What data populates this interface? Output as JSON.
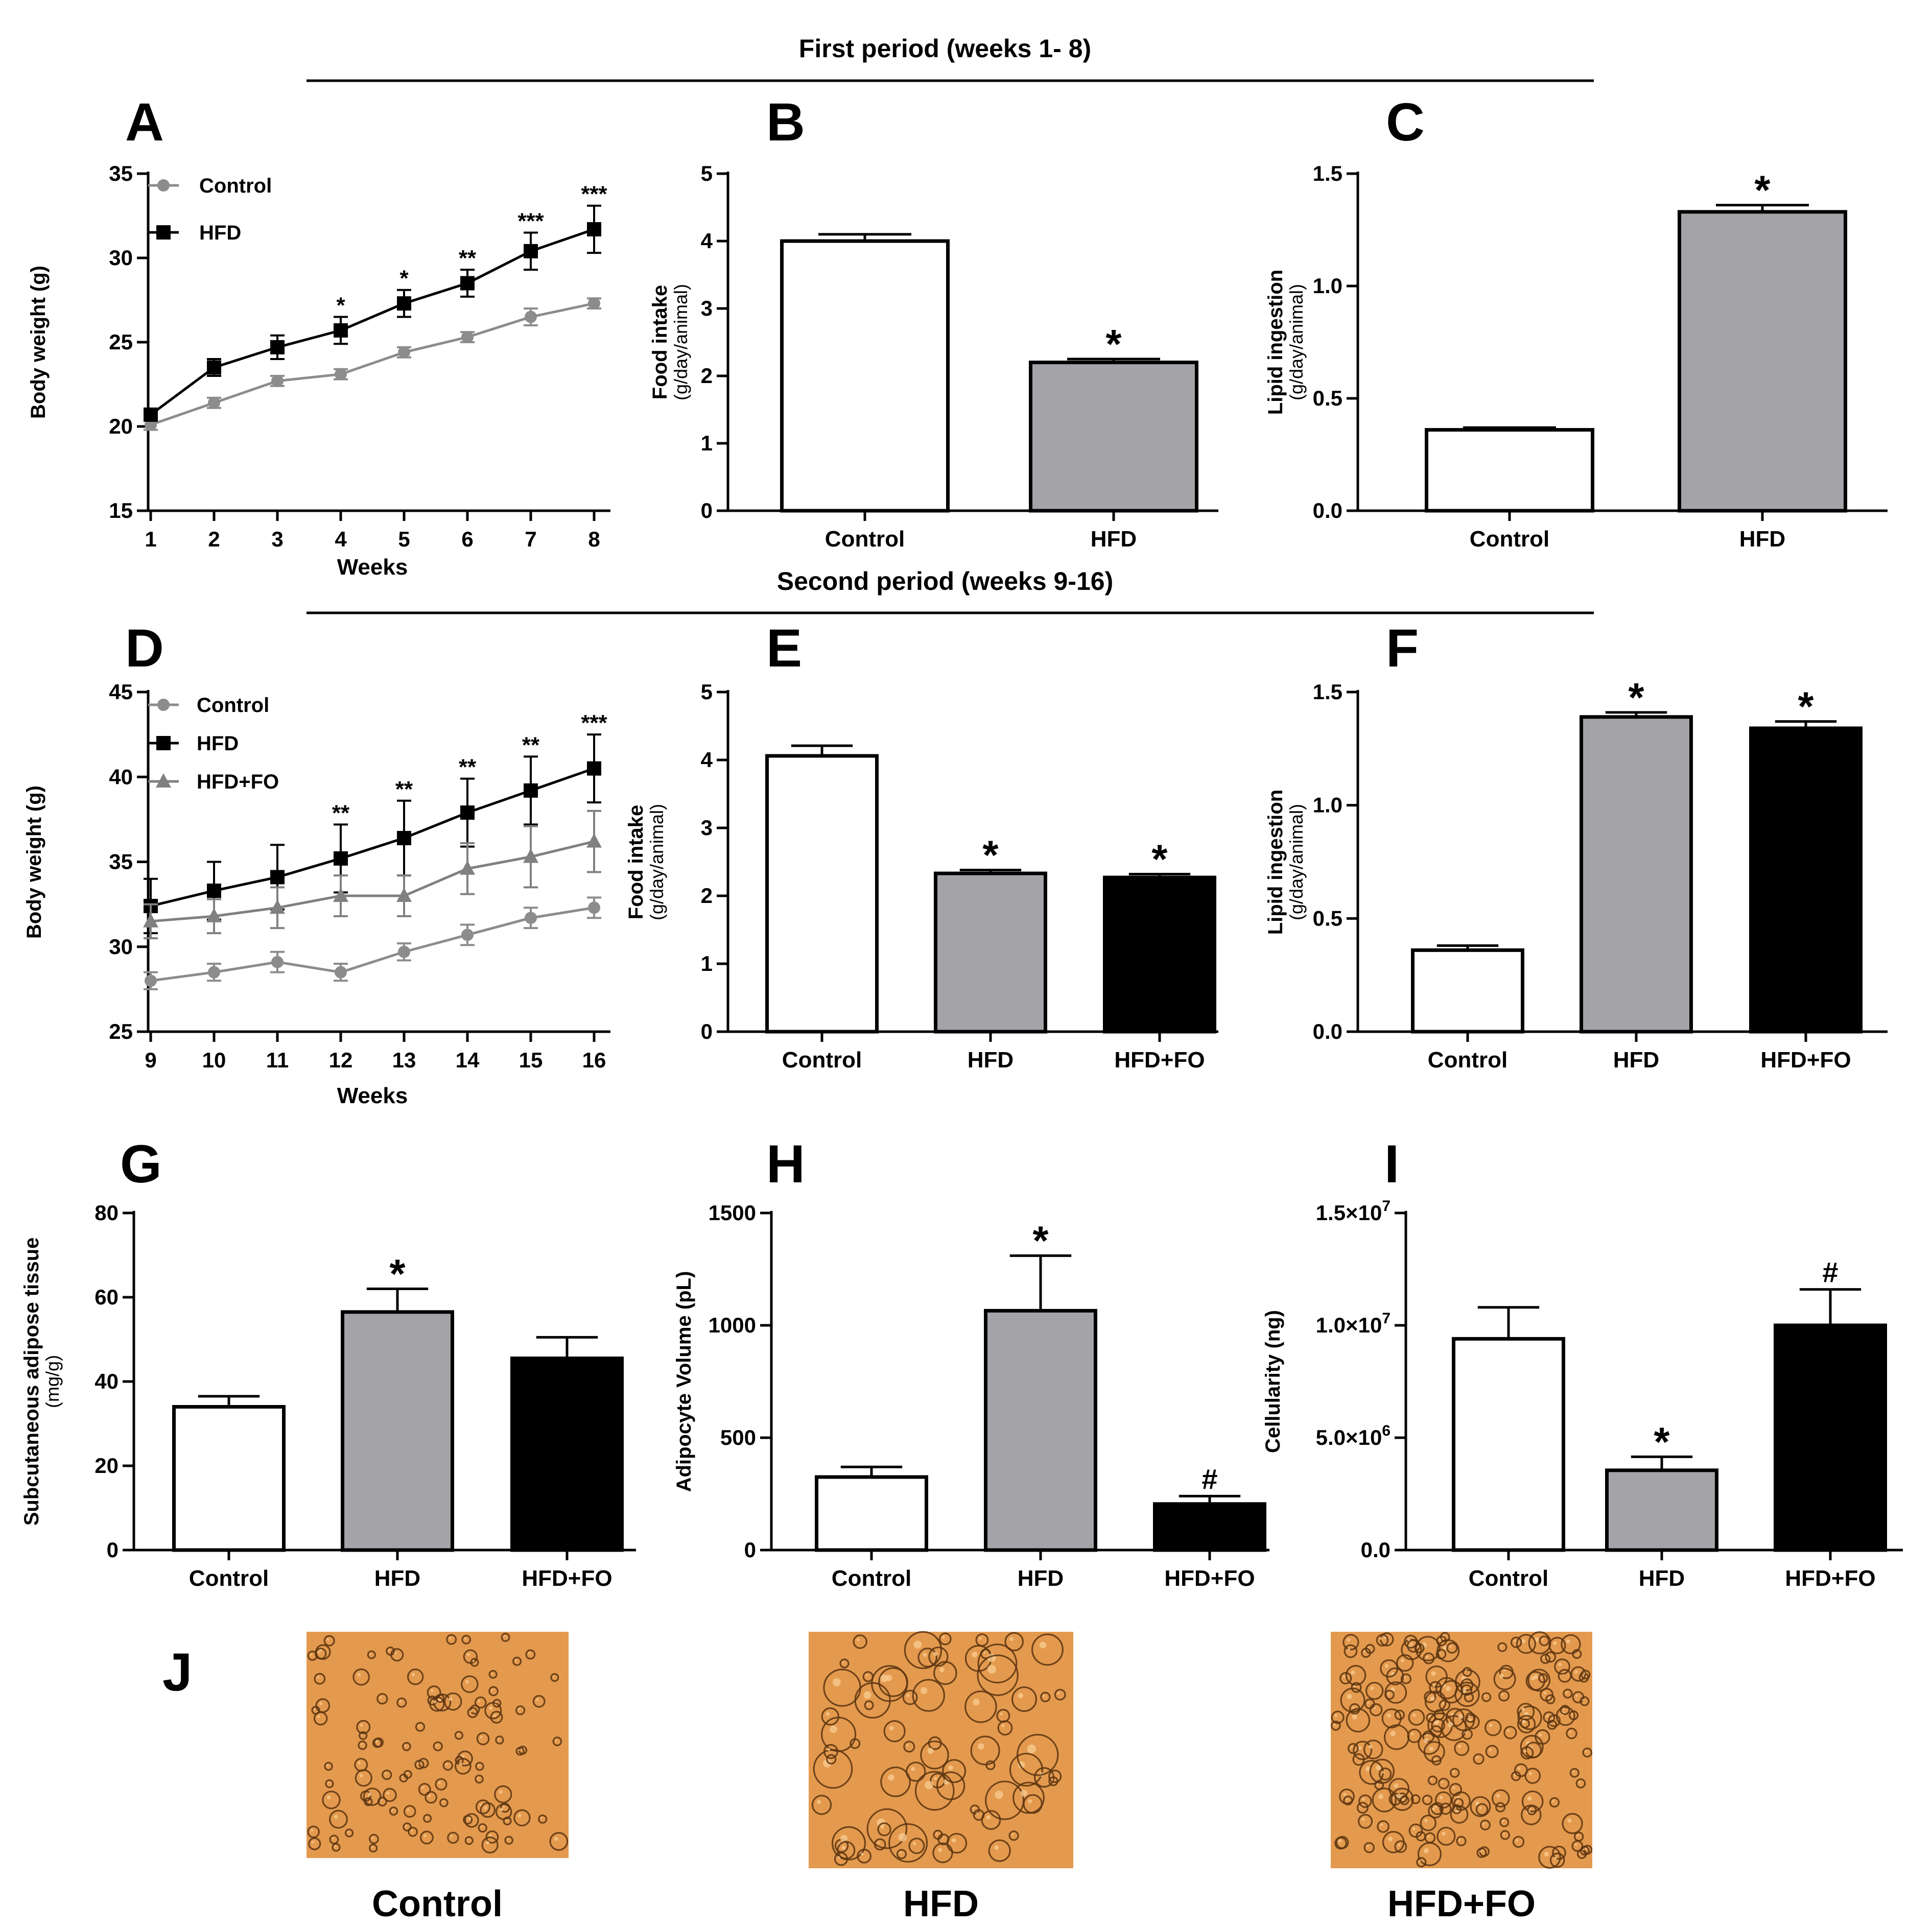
{
  "figure": {
    "period1_title": "First period (weeks 1- 8)",
    "period2_title": "Second period (weeks 9-16)",
    "panel_j_label": "J",
    "micrographs": [
      {
        "caption": "Control",
        "bg": "#e49a4e",
        "density": "sparse"
      },
      {
        "caption": "HFD",
        "bg": "#e49a4e",
        "density": "large"
      },
      {
        "caption": "HFD+FO",
        "bg": "#e49a4e",
        "density": "dense"
      }
    ]
  },
  "colors": {
    "control_line": "#8c8c8c",
    "hfd_line": "#000000",
    "hfdfo_line": "#808080",
    "control_bar": "#ffffff",
    "hfd_bar": "#a3a3a8",
    "hfdfo_bar": "#000000",
    "micro_bubble": "#5a3410"
  },
  "chart_data": [
    {
      "id": "A",
      "label": "A",
      "type": "line",
      "ylabel": "Body weight (g)",
      "ylabel2": "",
      "xlabel": "Weeks",
      "ylim": [
        15,
        35
      ],
      "yticks": [
        "15",
        "20",
        "25",
        "30",
        "35"
      ],
      "ytick_values": [
        15,
        20,
        25,
        30,
        35
      ],
      "x": [
        1,
        2,
        3,
        4,
        5,
        6,
        7,
        8
      ],
      "series": [
        {
          "name": "Control",
          "marker": "circle",
          "color": "#8c8c8c",
          "values": [
            20.1,
            21.4,
            22.7,
            23.1,
            24.4,
            25.3,
            26.5,
            27.3
          ],
          "errors": [
            0.3,
            0.3,
            0.3,
            0.3,
            0.3,
            0.3,
            0.5,
            0.3
          ]
        },
        {
          "name": "HFD",
          "marker": "square",
          "color": "#000000",
          "values": [
            20.7,
            23.5,
            24.7,
            25.7,
            27.3,
            28.5,
            30.4,
            31.7
          ],
          "errors": [
            0.3,
            0.5,
            0.7,
            0.8,
            0.8,
            0.8,
            1.1,
            1.4
          ]
        }
      ],
      "annotations": [
        "",
        "",
        "",
        "*",
        "*",
        "**",
        "***",
        "***"
      ]
    },
    {
      "id": "B",
      "label": "B",
      "type": "bar",
      "ylabel": "Food intake",
      "ylabel2": "(g/day/animal)",
      "ylim": [
        0,
        5
      ],
      "yticks": [
        "0",
        "1",
        "2",
        "3",
        "4",
        "5"
      ],
      "ytick_values": [
        0,
        1,
        2,
        3,
        4,
        5
      ],
      "categories": [
        "Control",
        "HFD"
      ],
      "values": [
        4.0,
        2.2
      ],
      "errors": [
        0.1,
        0.05
      ],
      "annotations": [
        "",
        "*"
      ],
      "bar_colors": [
        "#ffffff",
        "#a3a3a8"
      ]
    },
    {
      "id": "C",
      "label": "C",
      "type": "bar",
      "ylabel": "Lipid ingestion",
      "ylabel2": "(g/day/animal)",
      "ylim": [
        0,
        1.5
      ],
      "yticks": [
        "0.0",
        "0.5",
        "1.0",
        "1.5"
      ],
      "ytick_values": [
        0,
        0.5,
        1.0,
        1.5
      ],
      "categories": [
        "Control",
        "HFD"
      ],
      "values": [
        0.36,
        1.33
      ],
      "errors": [
        0.01,
        0.03
      ],
      "annotations": [
        "",
        "*"
      ],
      "bar_colors": [
        "#ffffff",
        "#a3a3a8"
      ]
    },
    {
      "id": "D",
      "label": "D",
      "type": "line",
      "ylabel": "Body weight (g)",
      "ylabel2": "",
      "xlabel": "Weeks",
      "ylim": [
        25,
        45
      ],
      "yticks": [
        "25",
        "30",
        "35",
        "40",
        "45"
      ],
      "ytick_values": [
        25,
        30,
        35,
        40,
        45
      ],
      "x": [
        9,
        10,
        11,
        12,
        13,
        14,
        15,
        16
      ],
      "series": [
        {
          "name": "Control",
          "marker": "circle",
          "color": "#8c8c8c",
          "values": [
            28.0,
            28.5,
            29.1,
            28.5,
            29.7,
            30.7,
            31.7,
            32.3
          ],
          "errors": [
            0.5,
            0.5,
            0.6,
            0.5,
            0.5,
            0.6,
            0.6,
            0.6
          ]
        },
        {
          "name": "HFD",
          "marker": "square",
          "color": "#000000",
          "values": [
            32.4,
            33.3,
            34.1,
            35.2,
            36.4,
            37.9,
            39.2,
            40.5
          ],
          "errors": [
            1.6,
            1.7,
            1.9,
            2.0,
            2.2,
            2.0,
            2.0,
            2.0
          ]
        },
        {
          "name": "HFD+FO",
          "marker": "triangle",
          "color": "#808080",
          "values": [
            31.5,
            31.8,
            32.3,
            33.0,
            33.0,
            34.6,
            35.3,
            36.2
          ],
          "errors": [
            1.0,
            1.0,
            1.2,
            1.2,
            1.2,
            1.5,
            1.8,
            1.8
          ]
        }
      ],
      "annotations": [
        "",
        "",
        "",
        "**",
        "**",
        "**",
        "**",
        "***"
      ]
    },
    {
      "id": "E",
      "label": "E",
      "type": "bar",
      "ylabel": "Food intake",
      "ylabel2": "(g/day/animal)",
      "ylim": [
        0,
        5
      ],
      "yticks": [
        "0",
        "1",
        "2",
        "3",
        "4",
        "5"
      ],
      "ytick_values": [
        0,
        1,
        2,
        3,
        4,
        5
      ],
      "categories": [
        "Control",
        "HFD",
        "HFD+FO"
      ],
      "values": [
        4.06,
        2.33,
        2.27
      ],
      "errors": [
        0.15,
        0.05,
        0.05
      ],
      "annotations": [
        "",
        "*",
        "*"
      ],
      "bar_colors": [
        "#ffffff",
        "#a3a3a8",
        "#000000"
      ]
    },
    {
      "id": "F",
      "label": "F",
      "type": "bar",
      "ylabel": "Lipid ingestion",
      "ylabel2": "(g/day/animal)",
      "ylim": [
        0,
        1.5
      ],
      "yticks": [
        "0.0",
        "0.5",
        "1.0",
        "1.5"
      ],
      "ytick_values": [
        0,
        0.5,
        1.0,
        1.5
      ],
      "categories": [
        "Control",
        "HFD",
        "HFD+FO"
      ],
      "values": [
        0.36,
        1.39,
        1.34
      ],
      "errors": [
        0.02,
        0.02,
        0.03
      ],
      "annotations": [
        "",
        "*",
        "*"
      ],
      "bar_colors": [
        "#ffffff",
        "#a3a3a8",
        "#000000"
      ]
    },
    {
      "id": "G",
      "label": "G",
      "type": "bar",
      "ylabel": "Subcutaneous adipose tissue",
      "ylabel2": "(mg/g)",
      "ylim": [
        0,
        80
      ],
      "yticks": [
        "0",
        "20",
        "40",
        "60",
        "80"
      ],
      "ytick_values": [
        0,
        20,
        40,
        60,
        80
      ],
      "categories": [
        "Control",
        "HFD",
        "HFD+FO"
      ],
      "values": [
        34,
        56.5,
        45.5
      ],
      "errors": [
        2.5,
        5.5,
        5
      ],
      "annotations": [
        "",
        "*",
        ""
      ],
      "bar_colors": [
        "#ffffff",
        "#a3a3a8",
        "#000000"
      ]
    },
    {
      "id": "H",
      "label": "H",
      "type": "bar",
      "ylabel": "Adipocyte Volume (pL)",
      "ylabel2": "",
      "ylim": [
        0,
        1500
      ],
      "yticks": [
        "0",
        "500",
        "1000",
        "1500"
      ],
      "ytick_values": [
        0,
        500,
        1000,
        1500
      ],
      "categories": [
        "Control",
        "HFD",
        "HFD+FO"
      ],
      "values": [
        325,
        1065,
        205
      ],
      "errors": [
        45,
        245,
        35
      ],
      "annotations": [
        "",
        "*",
        "#"
      ],
      "bar_colors": [
        "#ffffff",
        "#a3a3a8",
        "#000000"
      ]
    },
    {
      "id": "I",
      "label": "I",
      "type": "bar",
      "ylabel": "Cellularity (ng)",
      "ylabel2": "",
      "ylim": [
        0,
        15000000
      ],
      "yticks": [
        {
          "base": "0.0",
          "exp": ""
        },
        {
          "base": "5.0×10",
          "exp": "6"
        },
        {
          "base": "1.0×10",
          "exp": "7"
        },
        {
          "base": "1.5×10",
          "exp": "7"
        }
      ],
      "ytick_values": [
        0,
        5000000,
        10000000,
        15000000
      ],
      "categories": [
        "Control",
        "HFD",
        "HFD+FO"
      ],
      "values": [
        9400000,
        3550000,
        10000000
      ],
      "errors": [
        1400000,
        600000,
        1600000
      ],
      "annotations": [
        "",
        "*",
        "#"
      ],
      "bar_colors": [
        "#ffffff",
        "#a3a3a8",
        "#000000"
      ]
    }
  ]
}
